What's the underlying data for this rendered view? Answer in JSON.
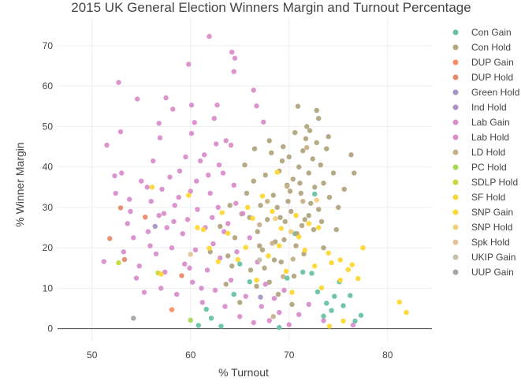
{
  "chart_data": {
    "type": "scatter",
    "title": "2015 UK General Election Winners Margin and Turnout Percentage",
    "xlabel": "% Turnout",
    "ylabel": "% Winner Margin",
    "xlim": [
      46.5,
      84.5
    ],
    "ylim": [
      -3,
      77
    ],
    "x_ticks": [
      50,
      60,
      70,
      80
    ],
    "y_ticks": [
      0,
      10,
      20,
      30,
      40,
      50,
      60,
      70
    ],
    "grid": true,
    "legend_position": "right",
    "series": [
      {
        "name": "Con Gain",
        "color": "#66c2a5",
        "points": [
          [
            60.8,
            0.8
          ],
          [
            61.6,
            4.8
          ],
          [
            62.1,
            2.6
          ],
          [
            63.1,
            0.6
          ],
          [
            64.4,
            8.5
          ],
          [
            65.0,
            16.0
          ],
          [
            66.0,
            11.6
          ],
          [
            69.0,
            0.3
          ],
          [
            69.8,
            12.5
          ],
          [
            70.6,
            23.5
          ],
          [
            71.4,
            14.0
          ],
          [
            72.3,
            13.7
          ],
          [
            72.6,
            33.3
          ],
          [
            72.9,
            9.1
          ],
          [
            73.5,
            3.1
          ],
          [
            73.8,
            6.3
          ],
          [
            74.3,
            4.5
          ],
          [
            74.6,
            8.0
          ],
          [
            75.1,
            11.6
          ],
          [
            75.5,
            5.7
          ],
          [
            76.2,
            8.2
          ],
          [
            76.7,
            1.9
          ],
          [
            77.3,
            3.3
          ]
        ]
      },
      {
        "name": "Con Hold",
        "color": "#b2a57f",
        "points": [
          [
            63.0,
            25.3
          ],
          [
            63.8,
            18.0
          ],
          [
            64.5,
            22.5
          ],
          [
            65.2,
            28.4
          ],
          [
            65.7,
            33.5
          ],
          [
            66.1,
            14.5
          ],
          [
            66.4,
            36.5
          ],
          [
            66.8,
            24.0
          ],
          [
            67.1,
            30.5
          ],
          [
            67.3,
            19.5
          ],
          [
            67.6,
            38.0
          ],
          [
            67.8,
            27.0
          ],
          [
            68.0,
            11.5
          ],
          [
            68.2,
            43.5
          ],
          [
            68.4,
            33.0
          ],
          [
            68.6,
            21.5
          ],
          [
            68.8,
            30.0
          ],
          [
            69.0,
            39.0
          ],
          [
            69.2,
            16.5
          ],
          [
            69.4,
            45.0
          ],
          [
            69.6,
            26.5
          ],
          [
            69.8,
            35.5
          ],
          [
            70.0,
            42.5
          ],
          [
            70.2,
            29.0
          ],
          [
            70.4,
            37.0
          ],
          [
            70.6,
            48.5
          ],
          [
            70.8,
            23.5
          ],
          [
            71.0,
            40.0
          ],
          [
            71.2,
            33.5
          ],
          [
            71.4,
            44.0
          ],
          [
            71.6,
            27.0
          ],
          [
            71.8,
            50.0
          ],
          [
            72.0,
            38.5
          ],
          [
            72.2,
            31.0
          ],
          [
            72.4,
            42.0
          ],
          [
            72.6,
            35.0
          ],
          [
            72.8,
            46.0
          ],
          [
            73.0,
            29.5
          ],
          [
            73.2,
            40.5
          ],
          [
            73.5,
            36.0
          ],
          [
            73.8,
            44.5
          ],
          [
            74.1,
            32.5
          ],
          [
            74.5,
            38.5
          ],
          [
            75.0,
            30.0
          ],
          [
            75.6,
            34.5
          ],
          [
            76.3,
            43.0
          ],
          [
            76.6,
            38.5
          ],
          [
            70.9,
            55.0
          ],
          [
            72.8,
            54.0
          ],
          [
            62.0,
            19.0
          ],
          [
            64.0,
            30.5
          ],
          [
            66.0,
            27.5
          ],
          [
            67.0,
            20.5
          ],
          [
            68.5,
            17.0
          ],
          [
            69.5,
            22.0
          ],
          [
            70.5,
            13.0
          ],
          [
            71.5,
            18.5
          ],
          [
            72.5,
            24.5
          ],
          [
            73.5,
            20.0
          ],
          [
            65.5,
            40.5
          ],
          [
            66.5,
            44.5
          ],
          [
            68.0,
            46.5
          ],
          [
            69.3,
            41.5
          ],
          [
            70.1,
            34.0
          ],
          [
            71.1,
            36.0
          ],
          [
            72.1,
            49.0
          ],
          [
            71.7,
            47.0
          ],
          [
            73.0,
            52.0
          ],
          [
            74.0,
            47.5
          ],
          [
            69.9,
            31.5
          ],
          [
            71.3,
            25.5
          ],
          [
            67.5,
            15.0
          ],
          [
            66.7,
            10.5
          ],
          [
            68.9,
            8.5
          ],
          [
            70.3,
            6.0
          ],
          [
            65.0,
            6.5
          ],
          [
            63.6,
            11.0
          ],
          [
            64.2,
            15.5
          ],
          [
            69.1,
            27.5
          ],
          [
            70.7,
            20.5
          ],
          [
            72.0,
            28.0
          ],
          [
            73.3,
            26.5
          ],
          [
            74.8,
            24.5
          ]
        ]
      },
      {
        "name": "DUP Gain",
        "color": "#fc8d62",
        "points": [
          [
            58.1,
            4.7
          ]
        ]
      },
      {
        "name": "DUP Hold",
        "color": "#e78a6b",
        "points": [
          [
            51.8,
            22.3
          ],
          [
            52.9,
            29.9
          ],
          [
            53.3,
            17.1
          ],
          [
            55.4,
            27.6
          ],
          [
            59.1,
            13.1
          ]
        ]
      },
      {
        "name": "Green Hold",
        "color": "#a794c4",
        "points": [
          [
            67.1,
            7.8
          ]
        ]
      },
      {
        "name": "Ind Hold",
        "color": "#a993c6",
        "points": [
          [
            56.4,
            25.3
          ]
        ]
      },
      {
        "name": "Lab Gain",
        "color": "#db8dc9",
        "points": [
          [
            61.9,
            72.3
          ],
          [
            64.2,
            68.4
          ],
          [
            64.5,
            66.9
          ],
          [
            59.8,
            65.4
          ],
          [
            64.4,
            63.6
          ],
          [
            52.7,
            60.9
          ],
          [
            66.4,
            59.0
          ],
          [
            57.5,
            57.1
          ],
          [
            54.6,
            56.8
          ],
          [
            58.2,
            54.3
          ],
          [
            62.7,
            55.3
          ],
          [
            60.1,
            55.3
          ],
          [
            66.7,
            55.1
          ],
          [
            56.8,
            50.8
          ],
          [
            67.4,
            51.1
          ],
          [
            60.1,
            48.3
          ],
          [
            52.9,
            48.7
          ],
          [
            56.9,
            47.2
          ],
          [
            51.5,
            45.4
          ],
          [
            62.6,
            45.7
          ],
          [
            64.1,
            45.4
          ]
        ]
      },
      {
        "name": "Lab Hold",
        "color": "#d98ecb",
        "points": [
          [
            51.2,
            16.6
          ],
          [
            52.4,
            33.5
          ],
          [
            53.0,
            38.5
          ],
          [
            53.6,
            26.0
          ],
          [
            53.9,
            29.0
          ],
          [
            54.2,
            22.5
          ],
          [
            54.5,
            12.5
          ],
          [
            55.0,
            36.5
          ],
          [
            55.3,
            9.0
          ],
          [
            55.7,
            24.0
          ],
          [
            56.0,
            31.5
          ],
          [
            56.2,
            41.5
          ],
          [
            56.5,
            18.5
          ],
          [
            56.8,
            28.0
          ],
          [
            57.1,
            34.5
          ],
          [
            57.4,
            14.0
          ],
          [
            57.6,
            25.0
          ],
          [
            57.9,
            37.5
          ],
          [
            58.1,
            20.0
          ],
          [
            58.4,
            30.5
          ],
          [
            58.6,
            8.5
          ],
          [
            58.9,
            39.0
          ],
          [
            59.2,
            23.5
          ],
          [
            59.4,
            16.0
          ],
          [
            59.7,
            27.0
          ],
          [
            60.0,
            34.0
          ],
          [
            60.2,
            11.5
          ],
          [
            60.5,
            19.5
          ],
          [
            60.7,
            29.5
          ],
          [
            61.0,
            41.5
          ],
          [
            61.2,
            6.5
          ],
          [
            61.5,
            25.0
          ],
          [
            61.7,
            14.5
          ],
          [
            62.0,
            33.5
          ],
          [
            62.3,
            21.0
          ],
          [
            62.5,
            9.5
          ],
          [
            62.8,
            30.0
          ],
          [
            63.0,
            17.5
          ],
          [
            63.3,
            38.5
          ],
          [
            63.5,
            5.5
          ],
          [
            63.8,
            26.0
          ],
          [
            64.1,
            12.0
          ],
          [
            64.4,
            35.5
          ],
          [
            64.7,
            19.0
          ],
          [
            65.0,
            3.0
          ],
          [
            65.3,
            28.5
          ],
          [
            65.6,
            8.0
          ],
          [
            66.0,
            22.5
          ],
          [
            66.4,
            1.5
          ],
          [
            66.8,
            16.5
          ],
          [
            67.2,
            5.5
          ],
          [
            67.6,
            11.0
          ],
          [
            68.0,
            2.0
          ],
          [
            68.5,
            7.5
          ],
          [
            69.0,
            4.0
          ],
          [
            69.5,
            9.5
          ],
          [
            70.0,
            1.0
          ],
          [
            71.0,
            3.5
          ],
          [
            72.0,
            6.0
          ],
          [
            73.5,
            2.0
          ],
          [
            76.5,
            0.9
          ],
          [
            52.3,
            37.8
          ],
          [
            53.8,
            32.0
          ],
          [
            55.6,
            35.0
          ],
          [
            57.3,
            28.5
          ],
          [
            58.8,
            32.5
          ],
          [
            60.6,
            36.5
          ],
          [
            61.8,
            38.0
          ],
          [
            62.9,
            40.5
          ],
          [
            59.5,
            42.5
          ],
          [
            61.4,
            43.0
          ],
          [
            60.4,
            51.0
          ],
          [
            62.4,
            52.0
          ],
          [
            63.6,
            46.5
          ],
          [
            58.3,
            26.5
          ],
          [
            59.9,
            15.0
          ],
          [
            61.1,
            10.0
          ],
          [
            62.2,
            27.5
          ],
          [
            63.4,
            24.0
          ],
          [
            64.6,
            31.0
          ],
          [
            55.9,
            20.5
          ],
          [
            57.0,
            10.0
          ],
          [
            54.8,
            15.5
          ],
          [
            53.2,
            19.0
          ]
        ]
      },
      {
        "name": "LD Hold",
        "color": "#c5b08a",
        "points": [
          [
            71.8,
            44.8
          ],
          [
            69.8,
            35.2
          ],
          [
            71.4,
            31.5
          ],
          [
            67.8,
            31.5
          ],
          [
            67.0,
            25.7
          ],
          [
            68.3,
            21.1
          ],
          [
            70.4,
            17.2
          ],
          [
            69.4,
            12.9
          ],
          [
            68.4,
            3.0
          ]
        ]
      },
      {
        "name": "PC Hold",
        "color": "#a6d854",
        "points": [
          [
            60.0,
            2.1
          ]
        ]
      },
      {
        "name": "SDLP Hold",
        "color": "#c9d73a",
        "points": [
          [
            52.7,
            16.3
          ],
          [
            56.7,
            13.8
          ]
        ]
      },
      {
        "name": "SF Hold",
        "color": "#f5d93a",
        "points": [
          [
            56.1,
            35.0
          ]
        ]
      },
      {
        "name": "SNP Gain",
        "color": "#fed730",
        "points": [
          [
            74.1,
            0.6
          ],
          [
            75.5,
            1.9
          ],
          [
            81.2,
            6.6
          ],
          [
            81.9,
            4.0
          ],
          [
            77.0,
            12.4
          ],
          [
            76.0,
            14.6
          ],
          [
            75.2,
            12.0
          ],
          [
            74.0,
            18.7
          ],
          [
            73.3,
            10.1
          ],
          [
            72.6,
            15.5
          ],
          [
            71.6,
            19.4
          ],
          [
            71.0,
            22.7
          ],
          [
            70.3,
            9.0
          ],
          [
            69.7,
            14.2
          ],
          [
            69.2,
            24.8
          ],
          [
            68.3,
            29.0
          ],
          [
            67.3,
            32.8
          ],
          [
            66.3,
            27.3
          ],
          [
            65.6,
            20.1
          ],
          [
            64.8,
            17.1
          ],
          [
            63.8,
            23.6
          ],
          [
            62.8,
            16.6
          ],
          [
            61.9,
            19.9
          ],
          [
            60.7,
            25.0
          ],
          [
            59.8,
            33.0
          ],
          [
            57.0,
            13.5
          ],
          [
            74.3,
            16.3
          ],
          [
            75.2,
            17.0
          ],
          [
            76.4,
            15.8
          ],
          [
            77.5,
            20.0
          ],
          [
            70.7,
            28.0
          ],
          [
            72.0,
            26.0
          ],
          [
            73.0,
            25.0
          ],
          [
            68.8,
            38.7
          ],
          [
            65.8,
            30.0
          ],
          [
            63.2,
            28.7
          ],
          [
            61.3,
            24.5
          ],
          [
            66.7,
            12.0
          ],
          [
            67.9,
            18.0
          ],
          [
            69.0,
            20.5
          ]
        ]
      },
      {
        "name": "SNP Hold",
        "color": "#f0d07f",
        "points": [
          [
            72.8,
            31.8
          ],
          [
            70.2,
            24.0
          ],
          [
            68.6,
            27.2
          ]
        ]
      },
      {
        "name": "Spk Hold",
        "color": "#e6c29a",
        "points": [
          [
            60.0,
            18.4
          ]
        ]
      },
      {
        "name": "UKIP Gain",
        "color": "#c7c1a9",
        "points": [
          [
            67.0,
            17.0
          ]
        ]
      },
      {
        "name": "UUP Gain",
        "color": "#a5a5a5",
        "points": [
          [
            54.2,
            2.6
          ]
        ]
      }
    ]
  }
}
